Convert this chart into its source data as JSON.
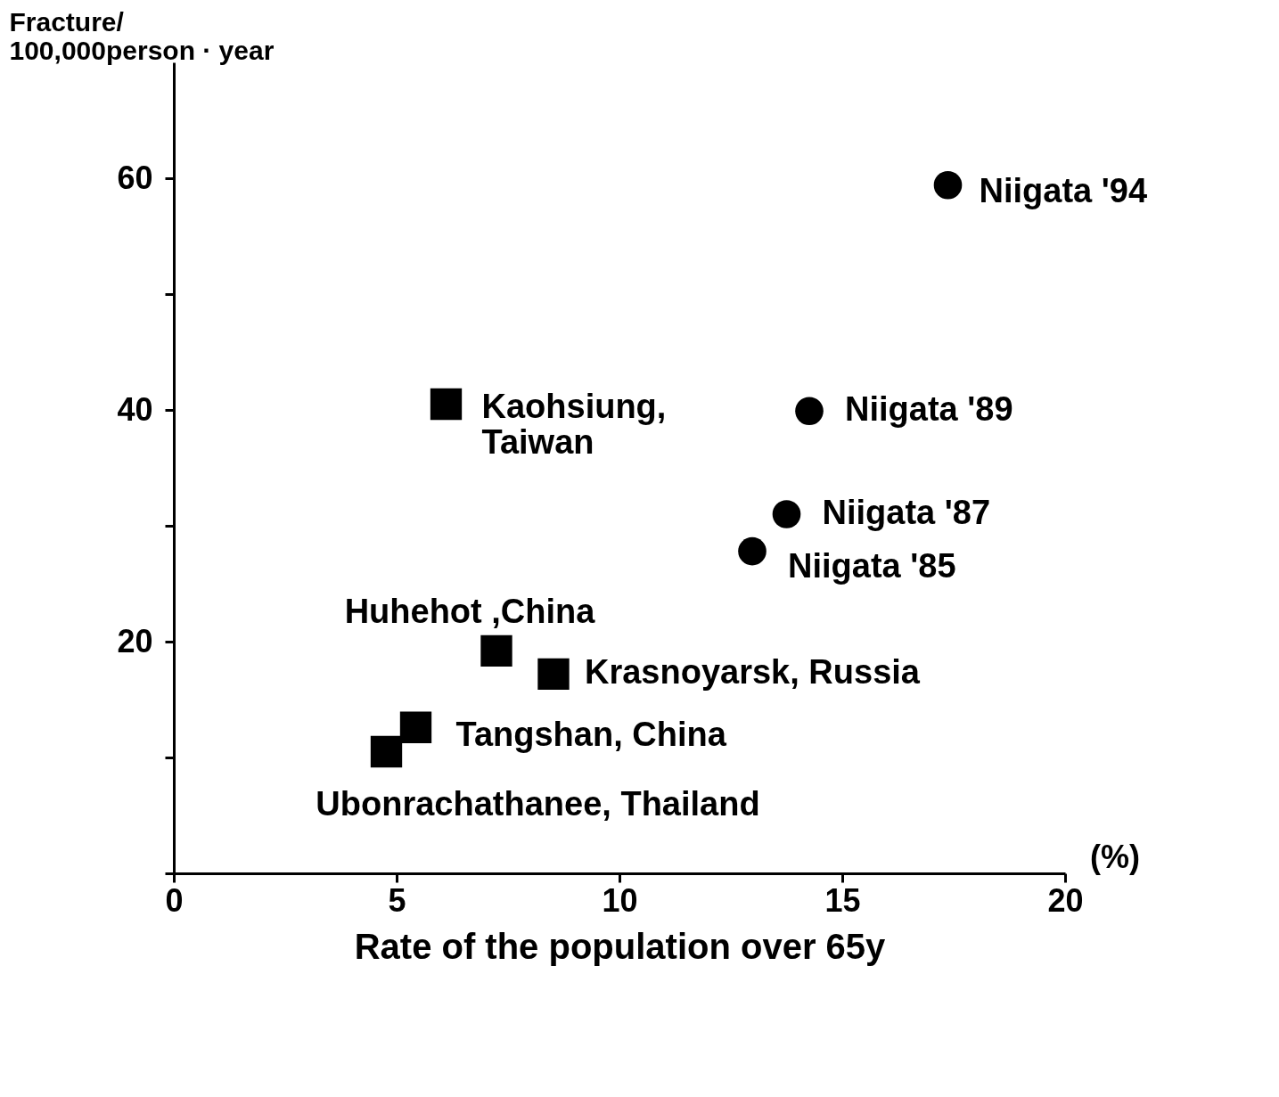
{
  "chart_data": {
    "type": "scatter",
    "xlabel": "Rate of the population over 65y",
    "ylabel": "Fracture/\n100,000person · year",
    "xlim": [
      0,
      20
    ],
    "xticks": [
      0,
      5,
      10,
      15,
      20
    ],
    "ylim": [
      0,
      70
    ],
    "yticks": [
      {
        "value": 0,
        "label": null
      },
      {
        "value": 10,
        "label": null
      },
      20,
      {
        "value": 30,
        "label": null
      },
      40,
      {
        "value": 50,
        "label": null
      },
      60
    ],
    "grid": false,
    "series": [
      {
        "color": "#000000",
        "marker": "circle",
        "x": [
          17.37,
          14.26,
          13.75,
          12.98
        ],
        "values": [
          59.4,
          39.9,
          31.0,
          27.8
        ]
      },
      {
        "color": "#000000",
        "marker": "square",
        "x": [
          6.11,
          7.24,
          8.52,
          5.43,
          4.77
        ],
        "values": [
          40.5,
          19.2,
          17.2,
          12.6,
          10.5
        ]
      }
    ],
    "annotations": [
      {
        "text": "Niigata  '94",
        "x": 17.37,
        "y": 59.4
      },
      {
        "text": "Niigata  '89",
        "x": 14.26,
        "y": 39.9
      },
      {
        "text": "Niigata  '87",
        "x": 13.75,
        "y": 31.0
      },
      {
        "text": "Niigata  '85",
        "x": 12.98,
        "y": 27.8
      },
      {
        "text": "Kaohsiung,\nTaiwan",
        "x": 6.11,
        "y": 40.5
      },
      {
        "text": "Huhehot ,China",
        "x": 7.24,
        "y": 19.2
      },
      {
        "text": "Krasnoyarsk, Russia",
        "x": 8.52,
        "y": 17.2
      },
      {
        "text": "Tangshan, China",
        "x": 5.43,
        "y": 12.6
      },
      {
        "text": "Ubonrachathanee, Thailand",
        "x": 4.77,
        "y": 10.5
      },
      "(%)"
    ]
  }
}
